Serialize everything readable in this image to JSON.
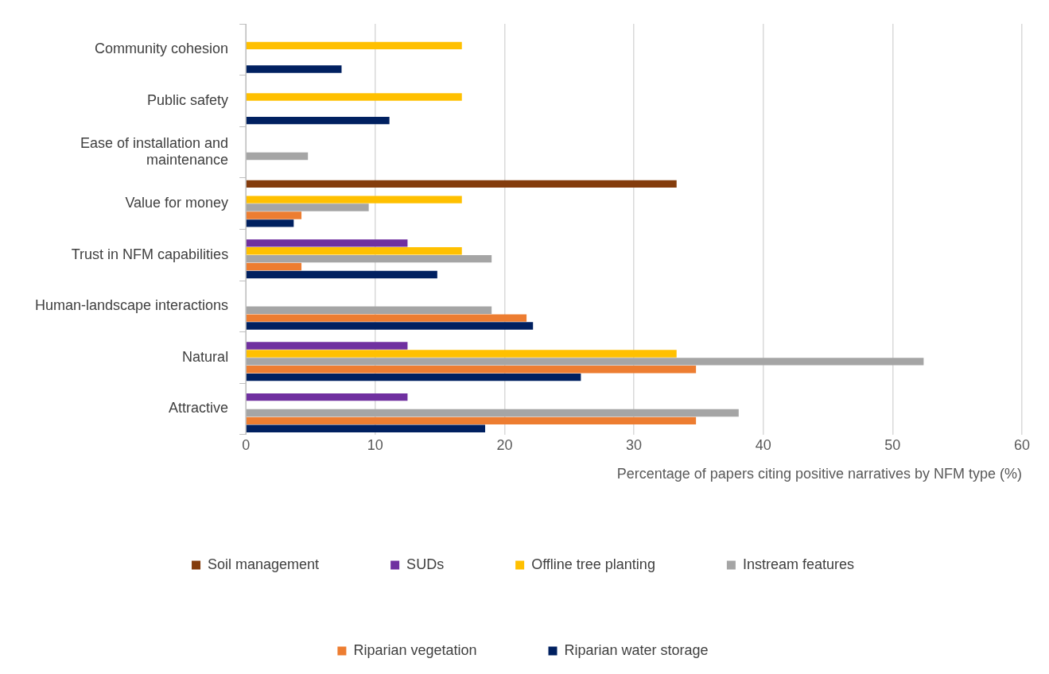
{
  "chart_data": {
    "type": "bar",
    "orientation": "horizontal",
    "xlabel": "Percentage of papers citing positive narratives by NFM type (%)",
    "categories": [
      "Community cohesion",
      "Public safety",
      "Ease of installation and maintenance",
      "Value for money",
      "Trust in NFM capabilities",
      "Human-landscape interactions",
      "Natural",
      "Attractive"
    ],
    "series": [
      {
        "name": "Soil management",
        "color": "#843c0c",
        "values": [
          null,
          null,
          null,
          33.3,
          null,
          null,
          null,
          null
        ]
      },
      {
        "name": "SUDs",
        "color": "#7030a0",
        "values": [
          null,
          null,
          null,
          null,
          12.5,
          null,
          12.5,
          12.5
        ]
      },
      {
        "name": "Offline tree planting",
        "color": "#ffc000",
        "values": [
          16.7,
          16.7,
          null,
          16.7,
          16.7,
          null,
          33.3,
          null
        ]
      },
      {
        "name": "Instream features",
        "color": "#a5a5a5",
        "values": [
          null,
          null,
          4.8,
          9.5,
          19.0,
          19.0,
          52.4,
          38.1
        ]
      },
      {
        "name": "Riparian vegetation",
        "color": "#ed7d31",
        "values": [
          null,
          null,
          null,
          4.3,
          4.3,
          21.7,
          34.8,
          34.8
        ]
      },
      {
        "name": "Riparian water storage",
        "color": "#002060",
        "values": [
          7.4,
          11.1,
          null,
          3.7,
          14.8,
          22.2,
          25.9,
          18.5
        ]
      }
    ],
    "xlim": [
      0,
      60
    ],
    "xticks": [
      0,
      10,
      20,
      30,
      40,
      50,
      60
    ],
    "grid": "x",
    "legend": "bottom"
  }
}
